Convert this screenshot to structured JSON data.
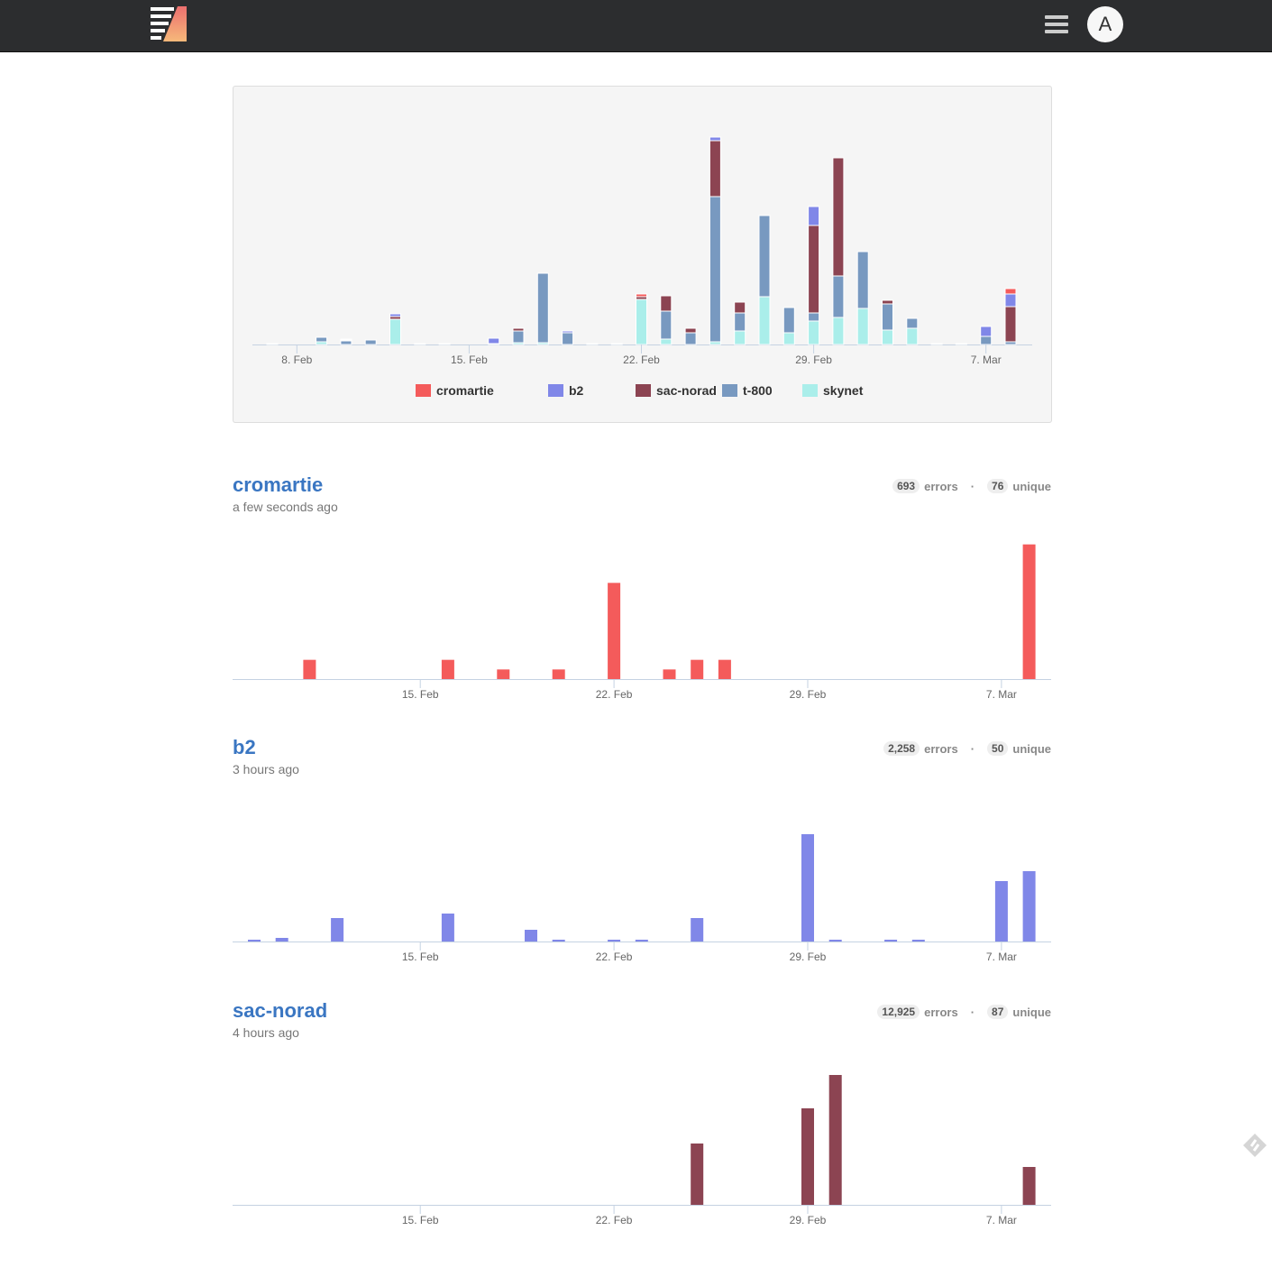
{
  "nav": {
    "avatar_letter": "A",
    "logo_alt": "Sentry-like logo"
  },
  "overview": {
    "chart_data": {
      "type": "bar",
      "stacked": true,
      "categories": [
        "7. Feb",
        "8. Feb",
        "9. Feb",
        "10. Feb",
        "11. Feb",
        "12. Feb",
        "13. Feb",
        "14. Feb",
        "15. Feb",
        "16. Feb",
        "17. Feb",
        "18. Feb",
        "19. Feb",
        "20. Feb",
        "21. Feb",
        "22. Feb",
        "23. Feb",
        "24. Feb",
        "25. Feb",
        "26. Feb",
        "27. Feb",
        "28. Feb",
        "29. Feb",
        "1. Mar",
        "2. Mar",
        "3. Mar",
        "4. Mar",
        "5. Mar",
        "6. Mar",
        "7. Mar",
        "8. Mar"
      ],
      "tick_labels": [
        "8. Feb",
        "15. Feb",
        "22. Feb",
        "29. Feb",
        "7. Mar"
      ],
      "ylim": [
        0,
        240
      ],
      "legend_position": "bottom",
      "series": [
        {
          "name": "skynet",
          "color": "#aaeeea",
          "values": [
            1,
            0,
            3,
            0,
            0,
            28,
            1,
            1,
            0,
            0,
            2,
            2,
            0,
            1,
            1,
            50,
            6,
            0,
            3,
            15,
            53,
            13,
            26,
            30,
            40,
            16,
            18,
            1,
            0.5,
            0,
            0
          ]
        },
        {
          "name": "t-800",
          "color": "#7899c0",
          "values": [
            0,
            0,
            5,
            4,
            5,
            0,
            0,
            0,
            0,
            1,
            13,
            77,
            13,
            0,
            0,
            0,
            31,
            13,
            161,
            20,
            90,
            28,
            9,
            46,
            63,
            29,
            11,
            0,
            0,
            9,
            3
          ]
        },
        {
          "name": "sac-norad",
          "color": "#8c4452",
          "values": [
            0,
            0,
            0,
            1,
            0,
            3,
            0,
            0,
            0,
            0,
            3,
            0,
            0,
            0,
            0,
            3,
            17,
            5,
            62,
            12,
            0,
            0,
            97,
            131,
            0,
            4,
            0,
            0,
            0,
            0,
            39
          ]
        },
        {
          "name": "b2",
          "color": "#8087e8",
          "values": [
            0,
            0,
            0,
            0,
            0,
            3,
            0,
            0,
            0,
            6,
            0,
            0,
            2,
            0,
            0,
            0,
            0,
            0,
            4,
            0,
            0,
            0,
            21,
            0,
            0,
            0,
            0,
            0,
            0,
            11,
            14
          ]
        },
        {
          "name": "cromartie",
          "color": "#f45b5b",
          "values": [
            0,
            0,
            0,
            1,
            0,
            0,
            0,
            0,
            0,
            0,
            0,
            0,
            0,
            0,
            0,
            3,
            0,
            0,
            0,
            0,
            0,
            0,
            0,
            0,
            0,
            0,
            0,
            0,
            0,
            0,
            6
          ]
        }
      ],
      "legend": [
        "cromartie",
        "b2",
        "sac-norad",
        "t-800",
        "skynet"
      ]
    }
  },
  "projects": [
    {
      "name": "cromartie",
      "last_seen": "a few seconds ago",
      "errors": "693",
      "errors_label": "errors",
      "unique": "76",
      "unique_label": "unique",
      "chart_data": {
        "type": "bar",
        "color": "#f45b5b",
        "ylim": [
          0,
          15
        ],
        "x_start": "9. Feb",
        "tick_labels": [
          "15. Feb",
          "22. Feb",
          "29. Feb",
          "7. Mar"
        ],
        "values": [
          0,
          0,
          2,
          0,
          0,
          0,
          0,
          2,
          0,
          1,
          0,
          1,
          0,
          10,
          0,
          1,
          2,
          2,
          0,
          0,
          0,
          0,
          0,
          0,
          0,
          0,
          0,
          0,
          14
        ]
      }
    },
    {
      "name": "b2",
      "last_seen": "3 hours ago",
      "errors": "2,258",
      "errors_label": "errors",
      "unique": "50",
      "unique_label": "unique",
      "chart_data": {
        "type": "bar",
        "color": "#8087e8",
        "ylim": [
          0,
          160
        ],
        "x_start": "9. Feb",
        "tick_labels": [
          "15. Feb",
          "22. Feb",
          "29. Feb",
          "7. Mar"
        ],
        "values": [
          2,
          4,
          0,
          26,
          0,
          0,
          0,
          31,
          0,
          0,
          13,
          2,
          0,
          2,
          2,
          0,
          26,
          0,
          0,
          0,
          119,
          2,
          0,
          2,
          2,
          0,
          0,
          67,
          78
        ]
      }
    },
    {
      "name": "sac-norad",
      "last_seen": "4 hours ago",
      "errors": "12,925",
      "errors_label": "errors",
      "unique": "87",
      "unique_label": "unique",
      "chart_data": {
        "type": "bar",
        "color": "#8c4452",
        "ylim": [
          0,
          160
        ],
        "x_start": "9. Feb",
        "tick_labels": [
          "15. Feb",
          "22. Feb",
          "29. Feb",
          "7. Mar"
        ],
        "values": [
          0,
          0,
          0,
          0,
          0,
          0,
          0,
          0,
          0,
          0,
          0,
          0,
          0,
          0,
          0,
          0,
          68,
          0,
          0,
          0,
          107,
          144,
          0,
          0,
          0,
          0,
          0,
          0,
          42
        ]
      }
    }
  ]
}
